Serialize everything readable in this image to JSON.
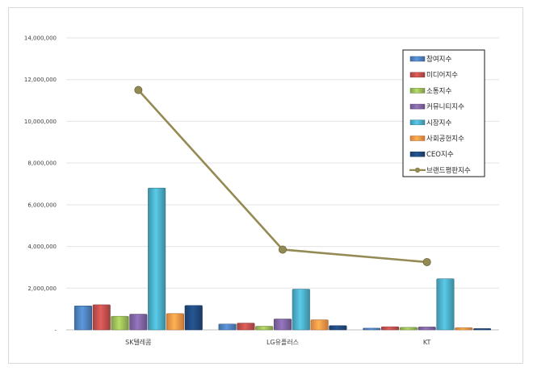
{
  "chart_data": {
    "type": "bar",
    "title": "",
    "xlabel": "",
    "ylabel": "",
    "ylim": [
      0,
      14000000
    ],
    "yticks": [
      0,
      2000000,
      4000000,
      6000000,
      8000000,
      10000000,
      12000000,
      14000000
    ],
    "ytick_labels": [
      "-",
      "2,000,000",
      "4,000,000",
      "6,000,000",
      "8,000,000",
      "10,000,000",
      "12,000,000",
      "14,000,000"
    ],
    "grid": true,
    "legend_position": "top-right",
    "categories": [
      "SK텔레콤",
      "LG유플러스",
      "KT"
    ],
    "series": [
      {
        "name": "참여지수",
        "kind": "bar",
        "color": "#4F81BD",
        "values": [
          1150000,
          280000,
          80000
        ]
      },
      {
        "name": "미디어지수",
        "kind": "bar",
        "color": "#C0504D",
        "values": [
          1200000,
          320000,
          150000
        ]
      },
      {
        "name": "소통지수",
        "kind": "bar",
        "color": "#9BBB59",
        "values": [
          650000,
          170000,
          120000
        ]
      },
      {
        "name": "커뮤니티지수",
        "kind": "bar",
        "color": "#8064A2",
        "values": [
          750000,
          520000,
          140000
        ]
      },
      {
        "name": "시장지수",
        "kind": "bar",
        "color": "#4BACC6",
        "values": [
          6800000,
          1950000,
          2450000
        ]
      },
      {
        "name": "사회공헌지수",
        "kind": "bar",
        "color": "#F79646",
        "values": [
          780000,
          480000,
          100000
        ]
      },
      {
        "name": "CEO지수",
        "kind": "bar",
        "color": "#1F497D",
        "values": [
          1170000,
          200000,
          60000
        ]
      },
      {
        "name": "브랜드평판지수",
        "kind": "line",
        "color": "#948A54",
        "marker_color": "#938953",
        "values": [
          11500000,
          3850000,
          3250000
        ]
      }
    ]
  }
}
